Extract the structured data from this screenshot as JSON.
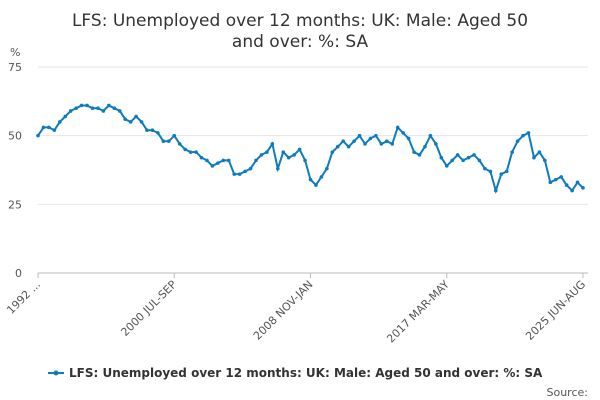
{
  "chart_data": {
    "type": "line",
    "title": "LFS: Unemployed over 12 months: UK: Male: Aged 50 and over: %: SA",
    "y_label": "%",
    "source": "Source:",
    "categories": [
      "1992 ...",
      null,
      null,
      null,
      null,
      null,
      null,
      null,
      null,
      null,
      null,
      null,
      null,
      null,
      null,
      null,
      null,
      null,
      null,
      null,
      null,
      null,
      null,
      null,
      null,
      "2000 JUL-SEP",
      null,
      null,
      null,
      null,
      null,
      null,
      null,
      null,
      null,
      null,
      null,
      null,
      null,
      null,
      null,
      null,
      null,
      null,
      null,
      null,
      null,
      null,
      null,
      null,
      "2008 NOV-JAN",
      null,
      null,
      null,
      null,
      null,
      null,
      null,
      null,
      null,
      null,
      null,
      null,
      null,
      null,
      null,
      null,
      null,
      null,
      null,
      null,
      null,
      null,
      null,
      null,
      "2017 MAR-MAY",
      null,
      null,
      null,
      null,
      null,
      null,
      null,
      null,
      null,
      null,
      null,
      null,
      null,
      null,
      null,
      null,
      null,
      null,
      null,
      null,
      null,
      null,
      null,
      null,
      "2025 JUN-AUG"
    ],
    "series": [
      {
        "name": "LFS: Unemployed over 12 months: UK: Male: Aged 50 and over: %: SA",
        "color": "#0e7bbd",
        "values": [
          50,
          53,
          53,
          52,
          55,
          57,
          59,
          60,
          61,
          61,
          60,
          60,
          59,
          61,
          60,
          59,
          56,
          55,
          57,
          55,
          52,
          52,
          51,
          48,
          48,
          50,
          47,
          45,
          44,
          44,
          42,
          41,
          39,
          40,
          41,
          41,
          36,
          36,
          37,
          38,
          41,
          43,
          44,
          47,
          38,
          44,
          42,
          43,
          45,
          41,
          34,
          32,
          35,
          38,
          44,
          46,
          48,
          46,
          48,
          50,
          47,
          49,
          50,
          47,
          48,
          47,
          53,
          51,
          49,
          44,
          43,
          46,
          50,
          47,
          42,
          39,
          41,
          43,
          41,
          42,
          43,
          41,
          38,
          37,
          30,
          36,
          37,
          44,
          48,
          50,
          51,
          42,
          44,
          41,
          33,
          34,
          35,
          32,
          30,
          33,
          31
        ]
      }
    ],
    "ylim": [
      0,
      75
    ],
    "yticks": [
      0,
      25,
      50,
      75
    ],
    "grid": true
  }
}
